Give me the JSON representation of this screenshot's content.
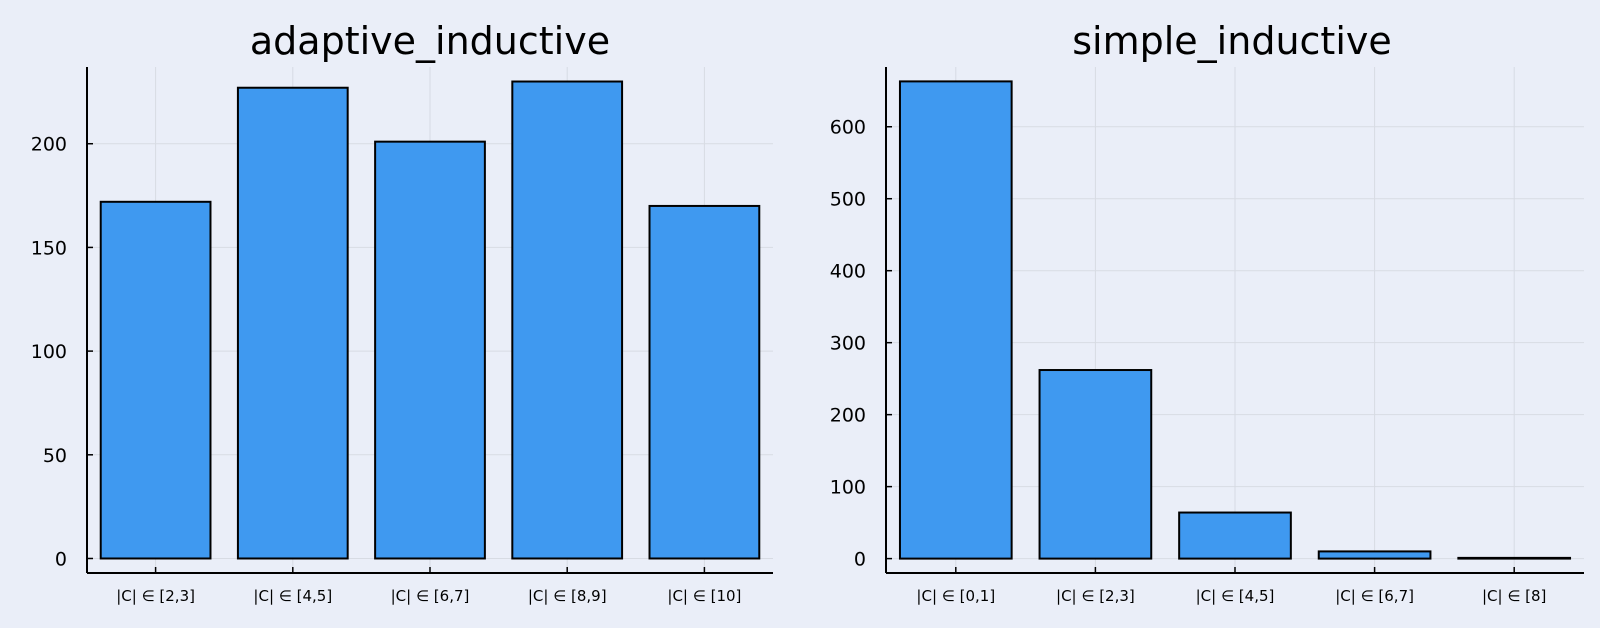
{
  "chart_data": [
    {
      "type": "bar",
      "title": "adaptive_inductive",
      "categories": [
        "|C| ∈ [2,3]",
        "|C| ∈ [4,5]",
        "|C| ∈ [6,7]",
        "|C| ∈ [8,9]",
        "|C| ∈ [10]"
      ],
      "values": [
        172,
        227,
        201,
        230,
        170
      ],
      "ylim": [
        -7,
        237
      ],
      "yticks": [
        0,
        50,
        100,
        150,
        200
      ],
      "grid": true,
      "legend": "none",
      "bar_color": "#3f99f0"
    },
    {
      "type": "bar",
      "title": "simple_inductive",
      "categories": [
        "|C| ∈ [0,1]",
        "|C| ∈ [2,3]",
        "|C| ∈ [4,5]",
        "|C| ∈ [6,7]",
        "|C| ∈ [8]"
      ],
      "values": [
        663,
        262,
        64,
        10,
        1
      ],
      "ylim": [
        -20,
        683
      ],
      "yticks": [
        0,
        100,
        200,
        300,
        400,
        500,
        600
      ],
      "grid": true,
      "legend": "none",
      "bar_color": "#3f99f0"
    }
  ]
}
